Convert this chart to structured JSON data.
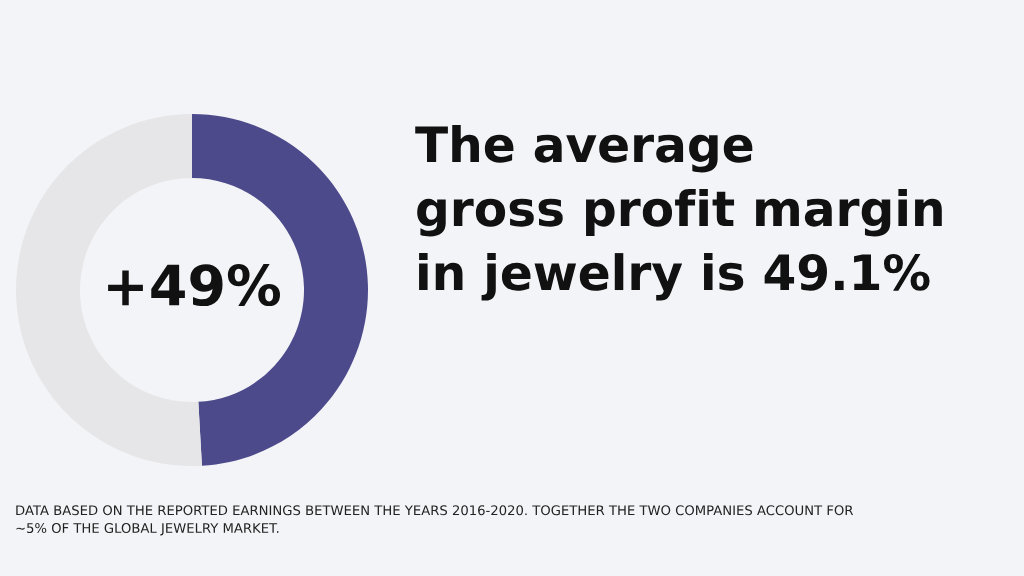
{
  "chart_data": {
    "type": "donut",
    "title": "The average\ngross profit margin\nin jewelry is 49.1%",
    "categories": [
      null,
      null
    ],
    "values": [
      49.1,
      50.9
    ],
    "colors": [
      "#4d4a8c",
      "#e6e6e8"
    ],
    "legend": false,
    "annotations": [
      "+49%",
      "DATA BASED ON THE REPORTED EARNINGS BETWEEN THE YEARS 2016-2020. TOGETHER THE TWO COMPANIES ACCOUNT FOR ~5% OF THE GLOBAL JEWELRY MARKET."
    ]
  }
}
